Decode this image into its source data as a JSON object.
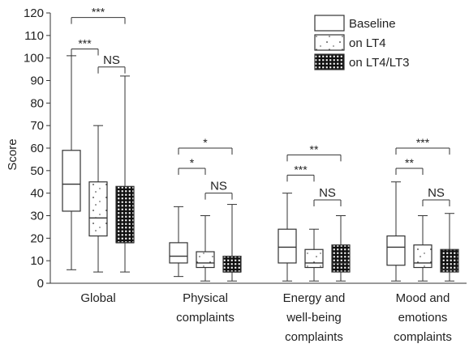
{
  "chart_data": {
    "type": "box",
    "ylabel": "Score",
    "ylim": [
      0,
      120
    ],
    "yticks": [
      0,
      10,
      20,
      30,
      40,
      50,
      60,
      70,
      80,
      90,
      100,
      110,
      120
    ],
    "legend_position": "top-right",
    "series": [
      {
        "name": "Baseline",
        "pattern": "plain"
      },
      {
        "name": "on LT4",
        "pattern": "sparse-dots"
      },
      {
        "name": "on LT4/LT3",
        "pattern": "checker"
      }
    ],
    "groups": [
      {
        "label_lines": [
          "Global"
        ],
        "boxes": [
          {
            "series": "Baseline",
            "min": 6,
            "q1": 32,
            "median": 44,
            "q3": 59,
            "max": 101
          },
          {
            "series": "on LT4",
            "min": 5,
            "q1": 21,
            "median": 29,
            "q3": 45,
            "max": 70
          },
          {
            "series": "on LT4/LT3",
            "min": 5,
            "q1": 18,
            "median": 18,
            "q3": 43,
            "max": 92
          }
        ],
        "comparisons": [
          {
            "from": 0,
            "to": 2,
            "y": 118,
            "label": "***"
          },
          {
            "from": 0,
            "to": 1,
            "y": 104,
            "label": "***"
          },
          {
            "from": 1,
            "to": 2,
            "y": 96,
            "label": "NS"
          }
        ]
      },
      {
        "label_lines": [
          "Physical",
          "complaints"
        ],
        "boxes": [
          {
            "series": "Baseline",
            "min": 3,
            "q1": 9,
            "median": 12,
            "q3": 18,
            "max": 34
          },
          {
            "series": "on LT4",
            "min": 1,
            "q1": 7,
            "median": 9,
            "q3": 14,
            "max": 30
          },
          {
            "series": "on LT4/LT3",
            "min": 1,
            "q1": 5,
            "median": 5,
            "q3": 12,
            "max": 35
          }
        ],
        "comparisons": [
          {
            "from": 0,
            "to": 2,
            "y": 60,
            "label": "*"
          },
          {
            "from": 0,
            "to": 1,
            "y": 51,
            "label": "*"
          },
          {
            "from": 1,
            "to": 2,
            "y": 40,
            "label": "NS"
          }
        ]
      },
      {
        "label_lines": [
          "Energy and",
          "well-being",
          "complaints"
        ],
        "boxes": [
          {
            "series": "Baseline",
            "min": 1,
            "q1": 9,
            "median": 16,
            "q3": 24,
            "max": 40
          },
          {
            "series": "on LT4",
            "min": 1,
            "q1": 7,
            "median": 9,
            "q3": 15,
            "max": 24
          },
          {
            "series": "on LT4/LT3",
            "min": 1,
            "q1": 5,
            "median": 9,
            "q3": 17,
            "max": 30
          }
        ],
        "comparisons": [
          {
            "from": 0,
            "to": 2,
            "y": 57,
            "label": "**"
          },
          {
            "from": 0,
            "to": 1,
            "y": 48,
            "label": "***"
          },
          {
            "from": 1,
            "to": 2,
            "y": 37,
            "label": "NS"
          }
        ]
      },
      {
        "label_lines": [
          "Mood and",
          "emotions",
          "complaints"
        ],
        "boxes": [
          {
            "series": "Baseline",
            "min": 1,
            "q1": 8,
            "median": 16,
            "q3": 21,
            "max": 45
          },
          {
            "series": "on LT4",
            "min": 1,
            "q1": 7,
            "median": 9,
            "q3": 17,
            "max": 30
          },
          {
            "series": "on LT4/LT3",
            "min": 1,
            "q1": 5,
            "median": 6,
            "q3": 15,
            "max": 31
          }
        ],
        "comparisons": [
          {
            "from": 0,
            "to": 2,
            "y": 60,
            "label": "***"
          },
          {
            "from": 0,
            "to": 1,
            "y": 51,
            "label": "**"
          },
          {
            "from": 1,
            "to": 2,
            "y": 37,
            "label": "NS"
          }
        ]
      }
    ]
  }
}
